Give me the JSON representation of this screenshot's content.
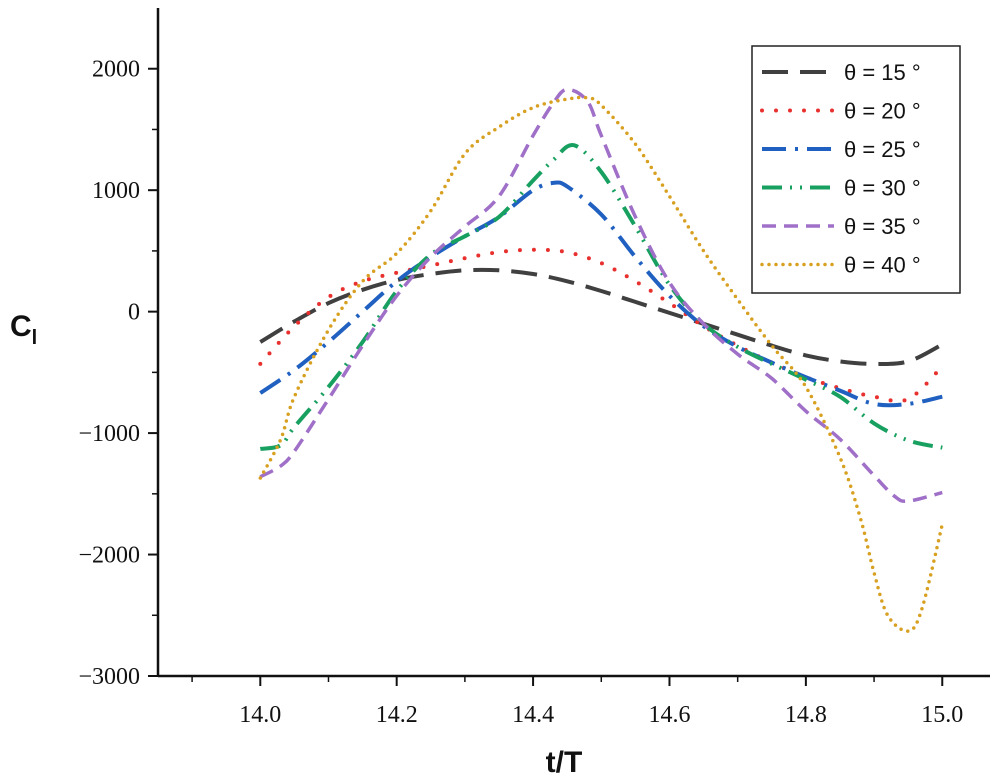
{
  "chart_data": {
    "type": "line",
    "xlabel": "t/T",
    "ylabel": "C",
    "ylabel_sub": "l",
    "xlim": [
      13.85,
      15.07
    ],
    "ylim": [
      -3000,
      2500
    ],
    "x_ticks": [
      14.0,
      14.2,
      14.4,
      14.6,
      14.8,
      15.0
    ],
    "x_tick_labels": [
      "14.0",
      "14.2",
      "14.4",
      "14.6",
      "14.8",
      "15.0"
    ],
    "y_ticks": [
      -3000,
      -2000,
      -1000,
      0,
      1000,
      2000
    ],
    "y_tick_labels": [
      "−3000",
      "−2000",
      "−1000",
      "0",
      "1000",
      "2000"
    ],
    "legend_position": "top-right",
    "series": [
      {
        "name": "θ = 15 °",
        "color": "#404040",
        "style": "dash",
        "x": [
          14.0,
          14.05,
          14.1,
          14.15,
          14.2,
          14.25,
          14.3,
          14.35,
          14.4,
          14.45,
          14.5,
          14.55,
          14.6,
          14.65,
          14.7,
          14.75,
          14.8,
          14.85,
          14.9,
          14.95,
          15.0
        ],
        "y": [
          -250,
          -80,
          70,
          180,
          260,
          310,
          340,
          340,
          310,
          250,
          170,
          80,
          -10,
          -100,
          -190,
          -280,
          -360,
          -410,
          -430,
          -410,
          -270
        ]
      },
      {
        "name": "θ = 20 °",
        "color": "#e8302f",
        "style": "dot",
        "x": [
          14.0,
          14.05,
          14.1,
          14.15,
          14.2,
          14.25,
          14.3,
          14.35,
          14.4,
          14.45,
          14.5,
          14.55,
          14.6,
          14.65,
          14.7,
          14.75,
          14.8,
          14.85,
          14.9,
          14.95,
          15.0
        ],
        "y": [
          -430,
          -120,
          120,
          250,
          320,
          380,
          440,
          490,
          510,
          490,
          400,
          250,
          70,
          -120,
          -280,
          -420,
          -540,
          -630,
          -700,
          -720,
          -450
        ]
      },
      {
        "name": "θ = 25 °",
        "color": "#2060c0",
        "style": "dashdot",
        "x": [
          14.0,
          14.05,
          14.1,
          14.15,
          14.2,
          14.25,
          14.3,
          14.35,
          14.4,
          14.43,
          14.45,
          14.5,
          14.55,
          14.6,
          14.65,
          14.7,
          14.75,
          14.8,
          14.85,
          14.9,
          14.95,
          15.0
        ],
        "y": [
          -670,
          -480,
          -250,
          0,
          250,
          450,
          620,
          780,
          1000,
          1060,
          1030,
          800,
          450,
          130,
          -120,
          -290,
          -420,
          -540,
          -650,
          -760,
          -760,
          -700
        ]
      },
      {
        "name": "θ = 30 °",
        "color": "#18a060",
        "style": "dashdotdot",
        "x": [
          14.0,
          14.03,
          14.05,
          14.1,
          14.15,
          14.2,
          14.25,
          14.3,
          14.35,
          14.4,
          14.43,
          14.46,
          14.5,
          14.55,
          14.6,
          14.65,
          14.7,
          14.75,
          14.8,
          14.85,
          14.9,
          14.95,
          15.0
        ],
        "y": [
          -1130,
          -1100,
          -950,
          -620,
          -250,
          170,
          470,
          620,
          780,
          1080,
          1250,
          1370,
          1150,
          700,
          220,
          -100,
          -290,
          -430,
          -560,
          -700,
          -920,
          -1060,
          -1120
        ]
      },
      {
        "name": "θ = 35 °",
        "color": "#a070c8",
        "style": "shortdash",
        "x": [
          14.0,
          14.03,
          14.05,
          14.1,
          14.15,
          14.2,
          14.25,
          14.3,
          14.35,
          14.4,
          14.43,
          14.45,
          14.48,
          14.5,
          14.55,
          14.6,
          14.65,
          14.7,
          14.75,
          14.8,
          14.85,
          14.9,
          14.93,
          14.95,
          15.0
        ],
        "y": [
          -1360,
          -1270,
          -1150,
          -720,
          -280,
          130,
          450,
          700,
          950,
          1450,
          1720,
          1830,
          1730,
          1450,
          780,
          240,
          -100,
          -350,
          -550,
          -820,
          -1050,
          -1350,
          -1520,
          -1560,
          -1490
        ]
      },
      {
        "name": "θ = 40 °",
        "color": "#d8a020",
        "style": "finedot",
        "x": [
          14.0,
          14.03,
          14.05,
          14.1,
          14.15,
          14.2,
          14.25,
          14.3,
          14.35,
          14.4,
          14.45,
          14.48,
          14.5,
          14.55,
          14.6,
          14.65,
          14.7,
          14.75,
          14.8,
          14.85,
          14.88,
          14.9,
          14.92,
          14.95,
          14.97,
          15.0
        ],
        "y": [
          -1370,
          -1050,
          -700,
          -150,
          250,
          480,
          830,
          1300,
          1520,
          1680,
          1750,
          1760,
          1700,
          1380,
          950,
          500,
          100,
          -280,
          -620,
          -1200,
          -1700,
          -2150,
          -2500,
          -2630,
          -2450,
          -1750
        ]
      }
    ]
  }
}
